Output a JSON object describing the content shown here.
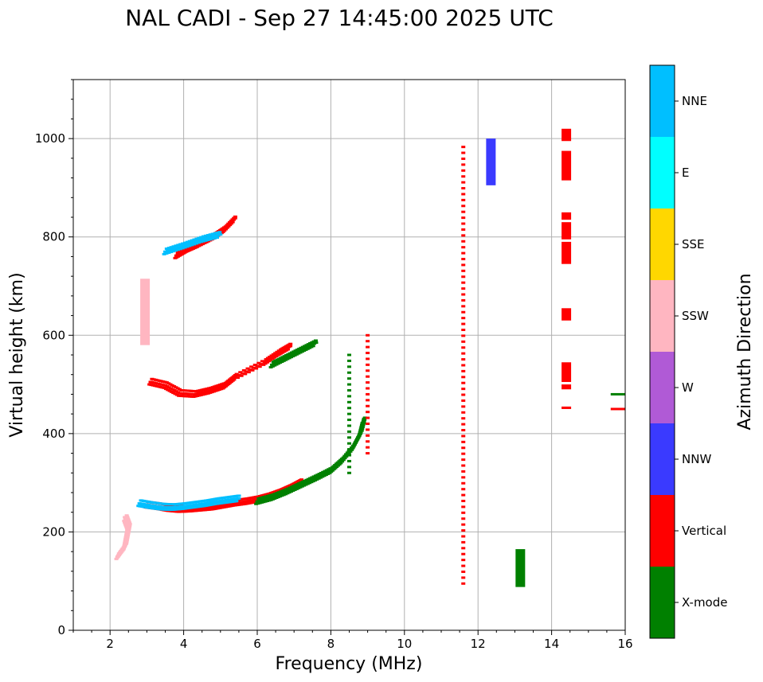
{
  "chart_data": {
    "type": "scatter",
    "title": "NAL CADI - Sep 27 14:45:00 2025 UTC",
    "xlabel": "Frequency (MHz)",
    "ylabel": "Virtual height (km)",
    "xlim": [
      1,
      16
    ],
    "ylim": [
      0,
      1120
    ],
    "xticks": [
      2,
      4,
      6,
      8,
      10,
      12,
      14,
      16
    ],
    "yticks": [
      0,
      200,
      400,
      600,
      800,
      1000
    ],
    "grid": true,
    "colorbar": {
      "title": "Azimuth Direction",
      "categories": [
        {
          "name": "X-mode",
          "color": "#008000"
        },
        {
          "name": "Vertical",
          "color": "#ff0000"
        },
        {
          "name": "NNW",
          "color": "#3a3aff"
        },
        {
          "name": "W",
          "color": "#b05ad6"
        },
        {
          "name": "SSW",
          "color": "#ffb6c1"
        },
        {
          "name": "SSE",
          "color": "#ffd700"
        },
        {
          "name": "E",
          "color": "#00ffff"
        },
        {
          "name": "NNE",
          "color": "#00bfff"
        }
      ]
    },
    "series": [
      {
        "name": "Vertical",
        "type": "trace_points",
        "points": [
          [
            3.0,
            255
          ],
          [
            3.3,
            252
          ],
          [
            3.6,
            248
          ],
          [
            3.9,
            246
          ],
          [
            4.2,
            247
          ],
          [
            4.5,
            249
          ],
          [
            4.8,
            251
          ],
          [
            5.1,
            255
          ],
          [
            5.4,
            259
          ],
          [
            5.7,
            262
          ],
          [
            6.0,
            266
          ],
          [
            6.3,
            272
          ],
          [
            6.6,
            280
          ],
          [
            6.9,
            290
          ],
          [
            7.2,
            302
          ]
        ]
      },
      {
        "name": "NNE",
        "type": "trace_points",
        "points": [
          [
            2.8,
            258
          ],
          [
            3.1,
            254
          ],
          [
            3.4,
            251
          ],
          [
            3.7,
            250
          ],
          [
            4.0,
            252
          ],
          [
            4.3,
            255
          ],
          [
            4.6,
            258
          ],
          [
            4.9,
            262
          ],
          [
            5.2,
            265
          ],
          [
            5.5,
            268
          ]
        ]
      },
      {
        "name": "X-mode",
        "type": "trace_points",
        "points": [
          [
            6.0,
            262
          ],
          [
            6.4,
            270
          ],
          [
            6.8,
            282
          ],
          [
            7.2,
            296
          ],
          [
            7.6,
            310
          ],
          [
            8.0,
            325
          ],
          [
            8.3,
            345
          ],
          [
            8.6,
            372
          ],
          [
            8.8,
            400
          ],
          [
            8.9,
            430
          ]
        ]
      },
      {
        "name": "Vertical",
        "type": "trace_points",
        "points": [
          [
            3.1,
            505
          ],
          [
            3.5,
            498
          ],
          [
            3.9,
            482
          ],
          [
            4.3,
            480
          ],
          [
            4.7,
            487
          ],
          [
            5.1,
            497
          ],
          [
            5.4,
            515
          ],
          [
            6.2,
            545
          ],
          [
            6.6,
            565
          ],
          [
            6.9,
            578
          ]
        ]
      },
      {
        "name": "X-mode",
        "type": "trace_points",
        "points": [
          [
            6.4,
            540
          ],
          [
            6.8,
            555
          ],
          [
            7.2,
            570
          ],
          [
            7.6,
            585
          ]
        ]
      },
      {
        "name": "Vertical",
        "type": "trace_points",
        "points": [
          [
            3.8,
            762
          ],
          [
            4.1,
            775
          ],
          [
            4.4,
            785
          ],
          [
            4.8,
            800
          ],
          [
            5.1,
            815
          ],
          [
            5.4,
            838
          ]
        ]
      },
      {
        "name": "NNE",
        "type": "trace_points",
        "points": [
          [
            3.5,
            770
          ],
          [
            4.0,
            782
          ],
          [
            4.5,
            795
          ],
          [
            5.0,
            805
          ]
        ]
      },
      {
        "name": "SSW",
        "type": "trace_points",
        "points": [
          [
            2.2,
            150
          ],
          [
            2.4,
            170
          ],
          [
            2.45,
            190
          ],
          [
            2.5,
            210
          ],
          [
            2.4,
            230
          ]
        ]
      },
      {
        "name": "Vertical",
        "type": "column",
        "x": 14.4,
        "segments": [
          [
            450,
            455
          ],
          [
            490,
            500
          ],
          [
            505,
            545
          ],
          [
            630,
            655
          ],
          [
            745,
            790
          ],
          [
            795,
            830
          ],
          [
            835,
            850
          ],
          [
            915,
            975
          ],
          [
            995,
            1020
          ]
        ]
      },
      {
        "name": "NNW",
        "type": "column",
        "x": 12.35,
        "segments": [
          [
            905,
            1000
          ]
        ]
      },
      {
        "name": "X-mode",
        "type": "column",
        "x": 13.15,
        "segments": [
          [
            88,
            165
          ]
        ]
      },
      {
        "name": "Vertical",
        "type": "column",
        "x": 11.6,
        "segments": [
          [
            95,
            990
          ]
        ]
      },
      {
        "name": "X-mode",
        "type": "column",
        "x": 8.5,
        "segments": [
          [
            320,
            565
          ]
        ]
      },
      {
        "name": "Vertical",
        "type": "column",
        "x": 9.0,
        "segments": [
          [
            360,
            610
          ]
        ]
      },
      {
        "name": "SSW",
        "type": "column",
        "x": 2.95,
        "segments": [
          [
            580,
            715
          ]
        ]
      },
      {
        "name": "X-mode",
        "type": "points",
        "points": [
          [
            15.8,
            480
          ]
        ]
      },
      {
        "name": "Vertical",
        "type": "points",
        "points": [
          [
            15.8,
            450
          ]
        ]
      }
    ]
  }
}
